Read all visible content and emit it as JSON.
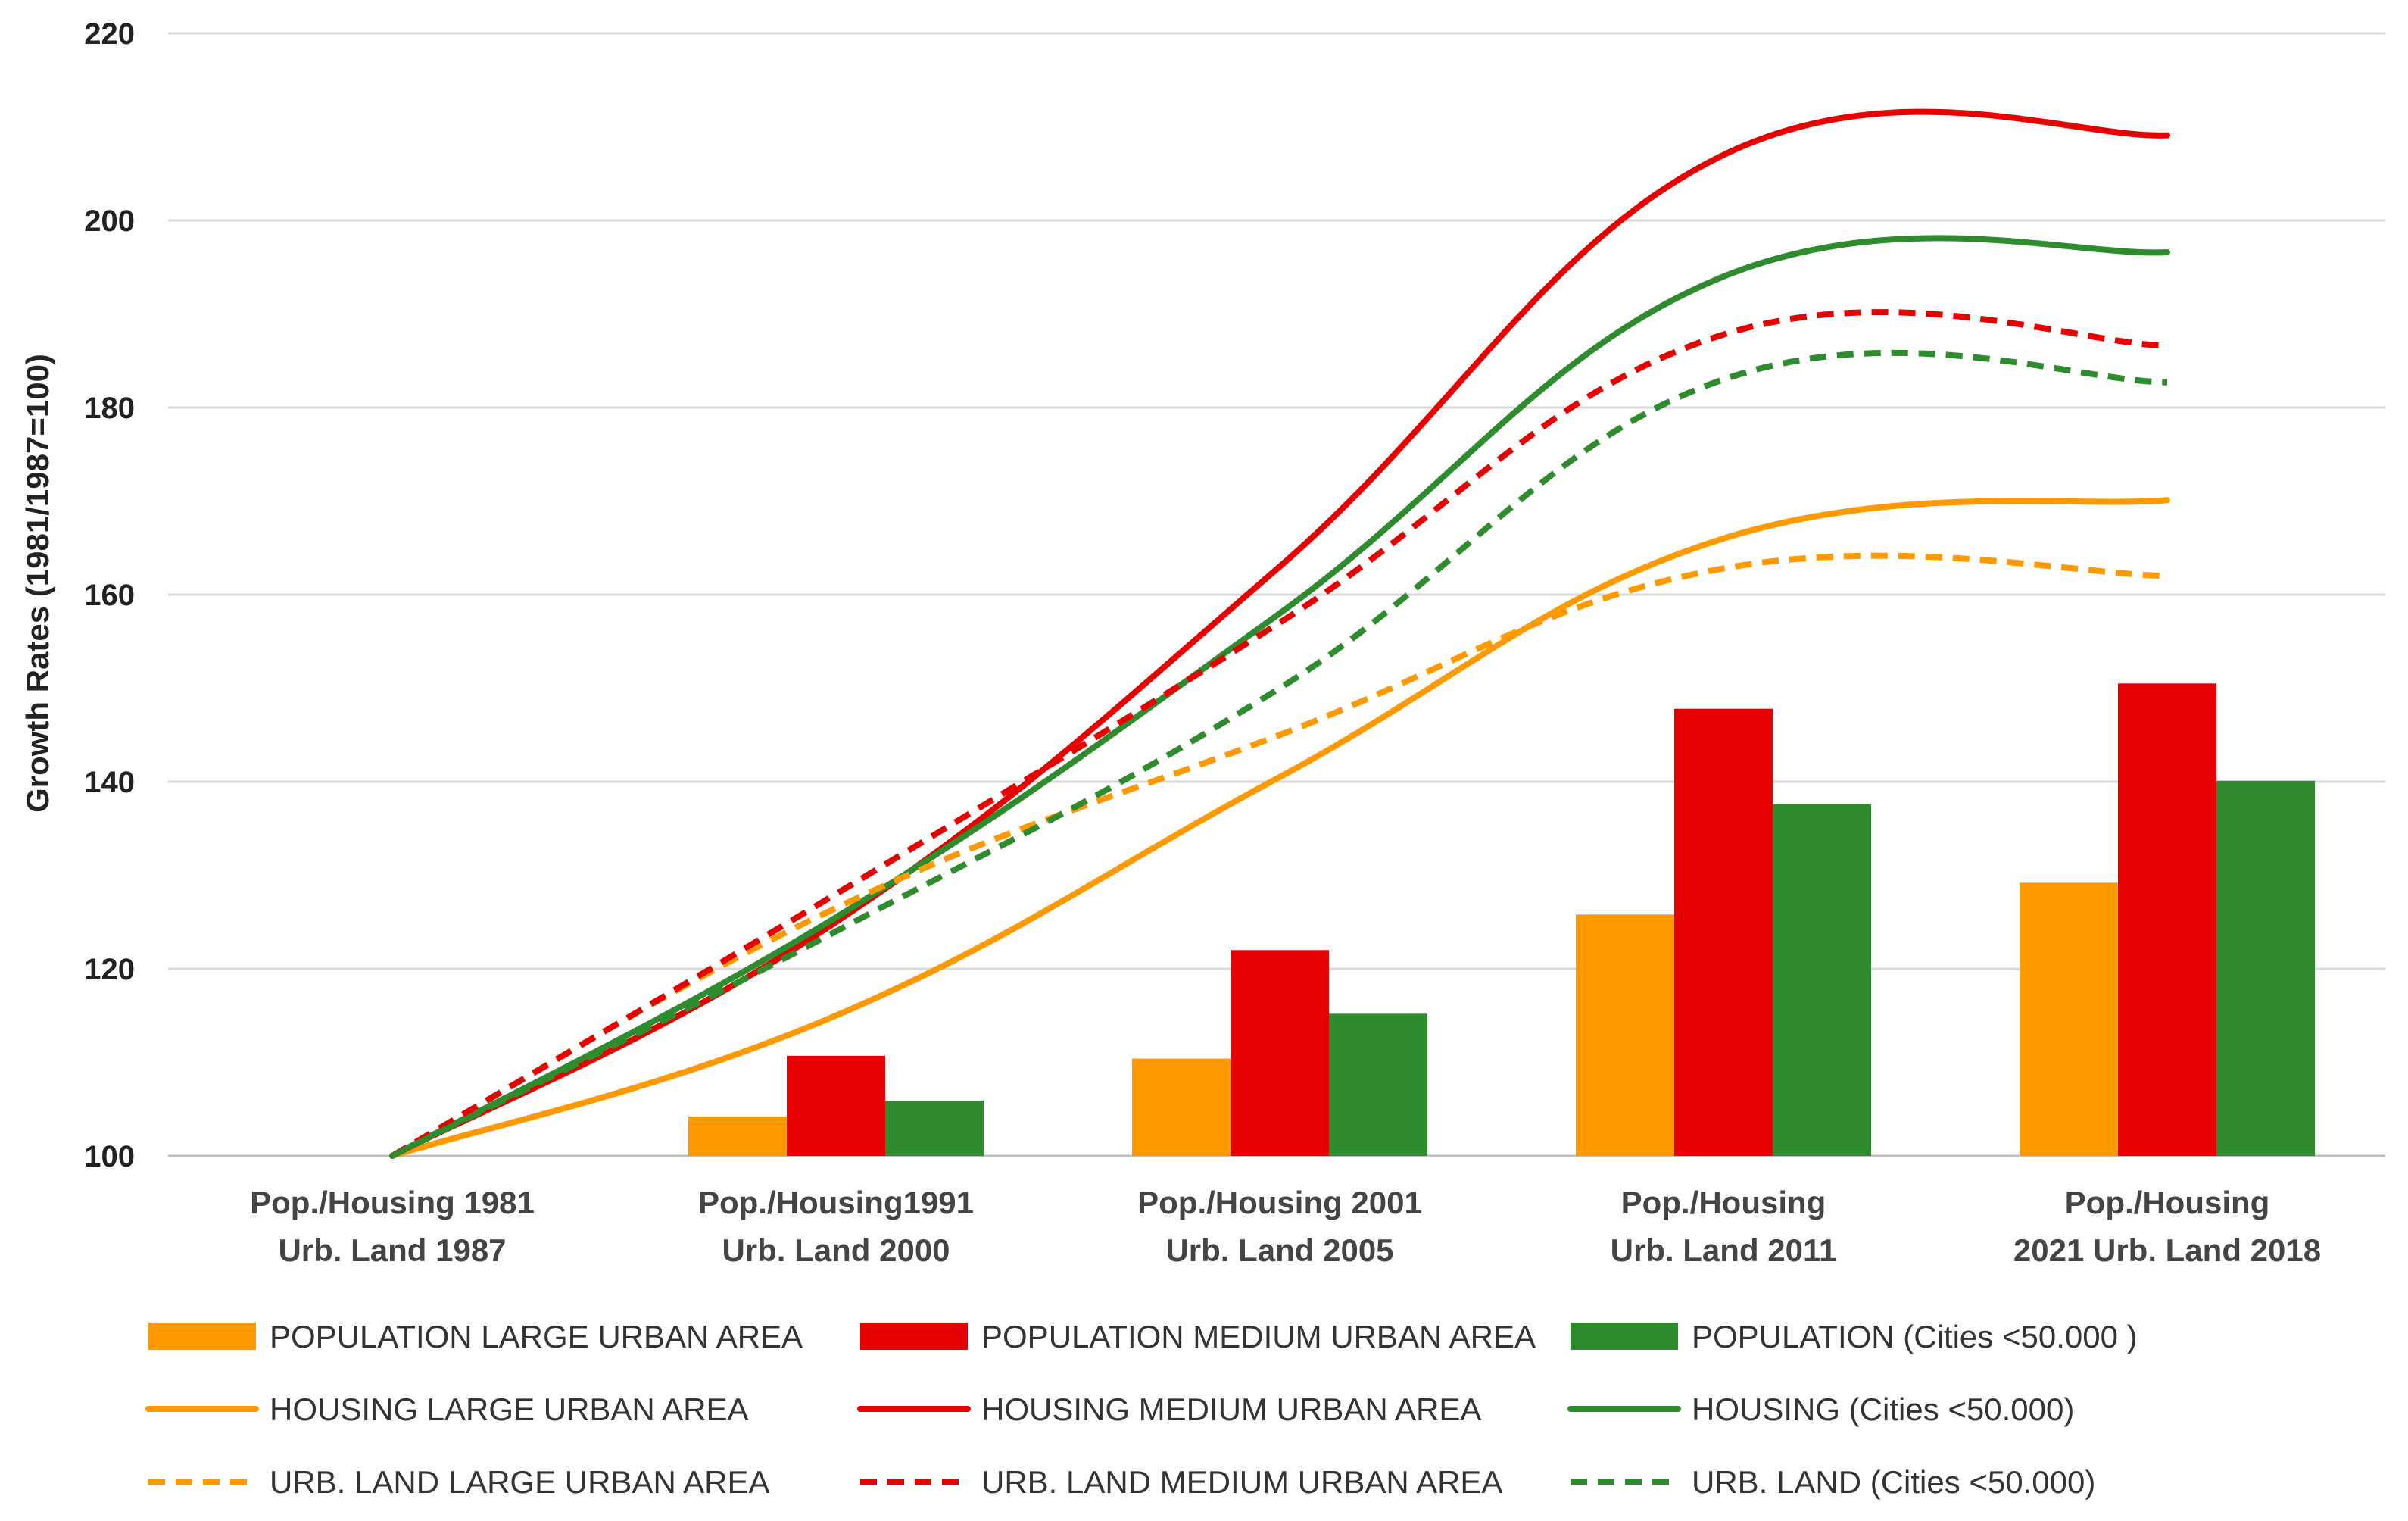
{
  "chart_data": {
    "type": "bar",
    "xlabel": "",
    "ylabel": "Growth Rates (1981/1987=100)",
    "ylim": [
      100,
      220
    ],
    "yticks": [
      100,
      120,
      140,
      160,
      180,
      200,
      220
    ],
    "grid": true,
    "legend_position": "bottom",
    "categories": [
      [
        "Pop./Housing 1981",
        "Urb. Land 1987"
      ],
      [
        "Pop./Housing1991",
        "Urb. Land 2000"
      ],
      [
        "Pop./Housing 2001",
        "Urb. Land 2005"
      ],
      [
        "Pop./Housing",
        "Urb. Land 2011"
      ],
      [
        "Pop./Housing",
        "2021 Urb. Land 2018"
      ]
    ],
    "series": [
      {
        "name": "POPULATION LARGE URBAN AREA",
        "kind": "bar",
        "color": "#FF9900",
        "values": [
          100,
          104.2,
          110.4,
          125.8,
          129.2
        ]
      },
      {
        "name": "POPULATION MEDIUM URBAN AREA",
        "kind": "bar",
        "color": "#E60000",
        "values": [
          100,
          110.7,
          122.0,
          147.8,
          150.5
        ]
      },
      {
        "name": "POPULATION (Cities <50.000 )",
        "kind": "bar",
        "color": "#2E8B2E",
        "values": [
          100,
          105.9,
          115.2,
          137.6,
          140.1
        ]
      },
      {
        "name": "HOUSING LARGE URBAN AREA",
        "kind": "line",
        "style": "solid",
        "color": "#FF9900",
        "values": [
          100,
          115.0,
          140.5,
          166.0,
          170.1
        ]
      },
      {
        "name": "HOUSING MEDIUM URBAN AREA",
        "kind": "line",
        "style": "solid",
        "color": "#E60000",
        "values": [
          100,
          125.0,
          163.0,
          207.0,
          209.1
        ]
      },
      {
        "name": "HOUSING (Cities <50.000)",
        "kind": "line",
        "style": "solid",
        "color": "#2E8B2E",
        "values": [
          100,
          125.5,
          158.0,
          194.0,
          196.6
        ]
      },
      {
        "name": "URB. LAND LARGE URBAN AREA",
        "kind": "line",
        "style": "dashed",
        "color": "#FF9900",
        "values": [
          100,
          126.5,
          145.0,
          162.8,
          162.0
        ]
      },
      {
        "name": "URB. LAND MEDIUM URBAN AREA",
        "kind": "line",
        "style": "dashed",
        "color": "#E60000",
        "values": [
          100,
          128.0,
          157.0,
          187.8,
          186.6
        ]
      },
      {
        "name": "URB. LAND (Cities <50.000)",
        "kind": "line",
        "style": "dashed",
        "color": "#2E8B2E",
        "values": [
          100,
          124.0,
          150.0,
          183.0,
          182.7
        ]
      }
    ]
  }
}
